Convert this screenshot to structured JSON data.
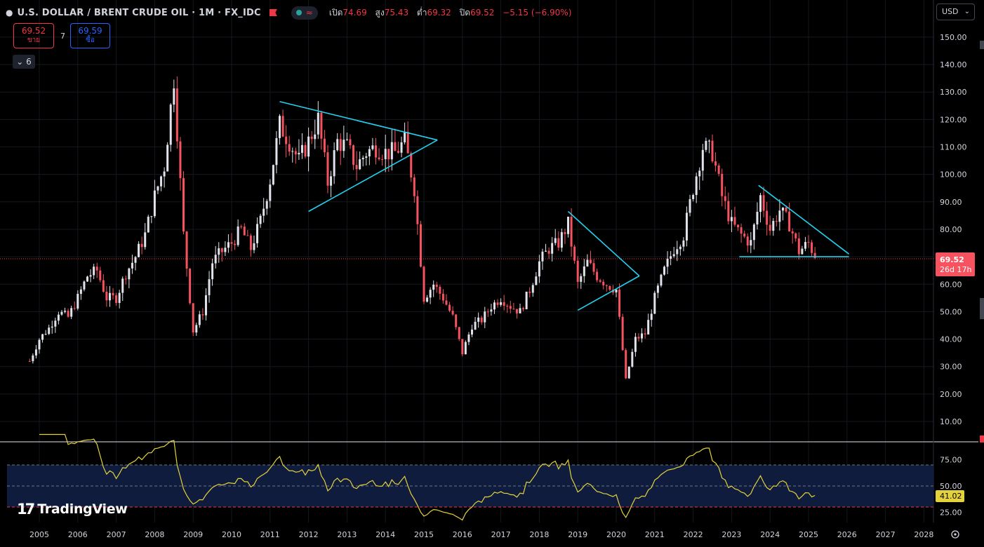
{
  "header": {
    "symbol_title": "U.S. DOLLAR / BRENT CRUDE OIL · 1M · FX_IDC",
    "open_label": "เปิด",
    "open_value": "74.69",
    "high_label": "สูง",
    "high_value": "75.43",
    "low_label": "ต่ำ",
    "low_value": "69.32",
    "close_label": "ปิด",
    "close_value": "69.52",
    "change_text": "−5.15 (−6.90%)"
  },
  "trade": {
    "sell_price": "69.52",
    "sell_label": "ขาย",
    "spread": "7",
    "buy_price": "69.59",
    "buy_label": "ซื้อ"
  },
  "indicators_toggle": {
    "icon": "chevron-down-icon",
    "count": "6"
  },
  "currency_select": {
    "value": "USD",
    "icon": "chevron-down-icon"
  },
  "price_axis": {
    "ticks": [
      "150.00",
      "140.00",
      "130.00",
      "120.00",
      "110.00",
      "100.00",
      "90.00",
      "80.00",
      "70.00",
      "60.00",
      "50.00",
      "40.00",
      "30.00",
      "20.00",
      "10.00"
    ],
    "last_price": "69.52",
    "countdown": "26d 17h"
  },
  "rsi_axis": {
    "ticks": [
      "75.00",
      "50.00",
      "25.00"
    ],
    "last_value": "41.02"
  },
  "time_axis": [
    "2005",
    "2006",
    "2007",
    "2008",
    "2009",
    "2010",
    "2011",
    "2012",
    "2013",
    "2014",
    "2015",
    "2016",
    "2017",
    "2018",
    "2019",
    "2020",
    "2021",
    "2022",
    "2023",
    "2024",
    "2025",
    "2026",
    "2027",
    "2028"
  ],
  "logo_text": "TradingView",
  "colors": {
    "bull": "#e0e3eb",
    "bear": "#f7525f",
    "trendline": "#22d1ee",
    "rsi_line": "#e4d23b",
    "rsi_band": "#0f1c3d",
    "accent_red": "#f23645",
    "accent_blue": "#2962ff"
  },
  "chart_data": {
    "type": "candlestick",
    "interval": "1M",
    "ylim": [
      0,
      155
    ],
    "xlim": [
      2004.7,
      2028.4
    ],
    "monthly_close": [
      {
        "year": 2004.75,
        "close": 32
      },
      {
        "year": 2005.0,
        "close": 40
      },
      {
        "year": 2005.25,
        "close": 44
      },
      {
        "year": 2005.5,
        "close": 50
      },
      {
        "year": 2005.75,
        "close": 48
      },
      {
        "year": 2006.0,
        "close": 55
      },
      {
        "year": 2006.25,
        "close": 63
      },
      {
        "year": 2006.5,
        "close": 65
      },
      {
        "year": 2006.75,
        "close": 55
      },
      {
        "year": 2007.0,
        "close": 55
      },
      {
        "year": 2007.25,
        "close": 64
      },
      {
        "year": 2007.5,
        "close": 70
      },
      {
        "year": 2007.75,
        "close": 78
      },
      {
        "year": 2008.0,
        "close": 92
      },
      {
        "year": 2008.25,
        "close": 103
      },
      {
        "year": 2008.5,
        "close": 135
      },
      {
        "year": 2008.75,
        "close": 78
      },
      {
        "year": 2009.0,
        "close": 43
      },
      {
        "year": 2009.25,
        "close": 50
      },
      {
        "year": 2009.5,
        "close": 68
      },
      {
        "year": 2009.75,
        "close": 72
      },
      {
        "year": 2010.0,
        "close": 75
      },
      {
        "year": 2010.25,
        "close": 80
      },
      {
        "year": 2010.5,
        "close": 73
      },
      {
        "year": 2010.75,
        "close": 83
      },
      {
        "year": 2011.0,
        "close": 98
      },
      {
        "year": 2011.25,
        "close": 118
      },
      {
        "year": 2011.5,
        "close": 112
      },
      {
        "year": 2011.75,
        "close": 105
      },
      {
        "year": 2012.0,
        "close": 112
      },
      {
        "year": 2012.25,
        "close": 120
      },
      {
        "year": 2012.5,
        "close": 97
      },
      {
        "year": 2012.75,
        "close": 112
      },
      {
        "year": 2013.0,
        "close": 110
      },
      {
        "year": 2013.25,
        "close": 103
      },
      {
        "year": 2013.5,
        "close": 108
      },
      {
        "year": 2013.75,
        "close": 110
      },
      {
        "year": 2014.0,
        "close": 108
      },
      {
        "year": 2014.25,
        "close": 108
      },
      {
        "year": 2014.5,
        "close": 112
      },
      {
        "year": 2014.75,
        "close": 95
      },
      {
        "year": 2015.0,
        "close": 55
      },
      {
        "year": 2015.25,
        "close": 60
      },
      {
        "year": 2015.5,
        "close": 55
      },
      {
        "year": 2015.75,
        "close": 48
      },
      {
        "year": 2016.0,
        "close": 35
      },
      {
        "year": 2016.25,
        "close": 45
      },
      {
        "year": 2016.5,
        "close": 47
      },
      {
        "year": 2016.75,
        "close": 52
      },
      {
        "year": 2017.0,
        "close": 55
      },
      {
        "year": 2017.25,
        "close": 52
      },
      {
        "year": 2017.5,
        "close": 50
      },
      {
        "year": 2017.75,
        "close": 58
      },
      {
        "year": 2018.0,
        "close": 68
      },
      {
        "year": 2018.25,
        "close": 73
      },
      {
        "year": 2018.5,
        "close": 75
      },
      {
        "year": 2018.75,
        "close": 82
      },
      {
        "year": 2019.0,
        "close": 60
      },
      {
        "year": 2019.25,
        "close": 68
      },
      {
        "year": 2019.5,
        "close": 63
      },
      {
        "year": 2019.75,
        "close": 60
      },
      {
        "year": 2020.0,
        "close": 58
      },
      {
        "year": 2020.25,
        "close": 25
      },
      {
        "year": 2020.5,
        "close": 40
      },
      {
        "year": 2020.75,
        "close": 42
      },
      {
        "year": 2021.0,
        "close": 55
      },
      {
        "year": 2021.25,
        "close": 65
      },
      {
        "year": 2021.5,
        "close": 73
      },
      {
        "year": 2021.75,
        "close": 78
      },
      {
        "year": 2022.0,
        "close": 95
      },
      {
        "year": 2022.25,
        "close": 110
      },
      {
        "year": 2022.5,
        "close": 108
      },
      {
        "year": 2022.75,
        "close": 92
      },
      {
        "year": 2023.0,
        "close": 82
      },
      {
        "year": 2023.25,
        "close": 78
      },
      {
        "year": 2023.5,
        "close": 75
      },
      {
        "year": 2023.75,
        "close": 92
      },
      {
        "year": 2024.0,
        "close": 80
      },
      {
        "year": 2024.25,
        "close": 87
      },
      {
        "year": 2024.5,
        "close": 82
      },
      {
        "year": 2024.75,
        "close": 72
      },
      {
        "year": 2025.0,
        "close": 75
      },
      {
        "year": 2025.2,
        "close": 69.52
      }
    ],
    "trendlines": [
      {
        "points": [
          [
            2011.25,
            126.5
          ],
          [
            2015.35,
            112.5
          ]
        ]
      },
      {
        "points": [
          [
            2012.0,
            86.5
          ],
          [
            2015.35,
            112.5
          ]
        ]
      },
      {
        "points": [
          [
            2018.75,
            86.5
          ],
          [
            2020.6,
            63
          ]
        ]
      },
      {
        "points": [
          [
            2019.0,
            50.5
          ],
          [
            2020.6,
            63
          ]
        ]
      },
      {
        "points": [
          [
            2023.7,
            96
          ],
          [
            2026.05,
            71
          ]
        ]
      },
      {
        "points": [
          [
            2023.2,
            70
          ],
          [
            2026.05,
            70
          ]
        ]
      }
    ],
    "rsi": {
      "levels": [
        70,
        50,
        30
      ],
      "last": 41.02
    }
  }
}
